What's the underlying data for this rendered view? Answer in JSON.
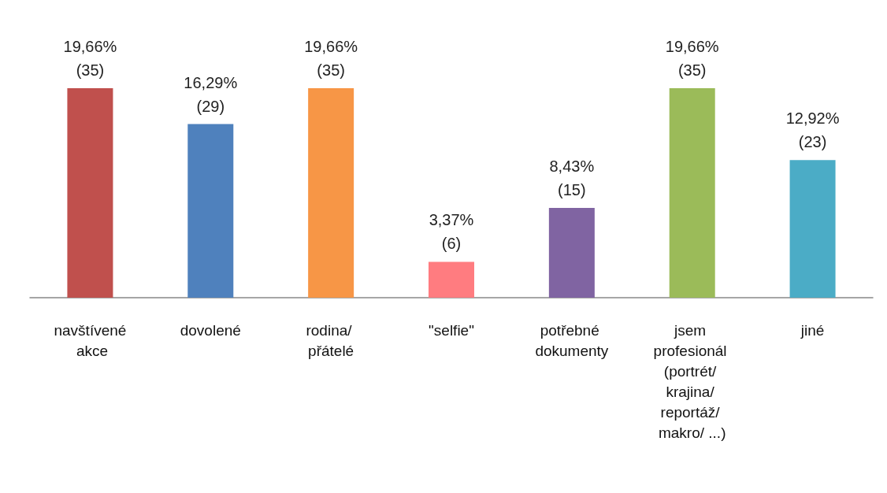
{
  "chart_data": {
    "type": "bar",
    "categories": [
      "navštívené akce",
      "dovolené",
      "rodina/ přátelé",
      "\"selfie\"",
      "potřebné dokumenty",
      "jsem profesionál (portrét/ krajina/ reportáž/ makro/ ...)",
      "jiné"
    ],
    "values": [
      35,
      29,
      35,
      6,
      15,
      35,
      23
    ],
    "value_labels": [
      "19,66%\n(35)",
      "16,29%\n(29)",
      "19,66%\n(35)",
      "3,37%\n(6)",
      "8,43%\n(15)",
      "19,66%\n(35)",
      "12,92%\n(23)"
    ],
    "colors": [
      "#c0504d",
      "#4f81bd",
      "#f79646",
      "#ff7c80",
      "#8064a2",
      "#9bbb59",
      "#4bacc6"
    ]
  }
}
